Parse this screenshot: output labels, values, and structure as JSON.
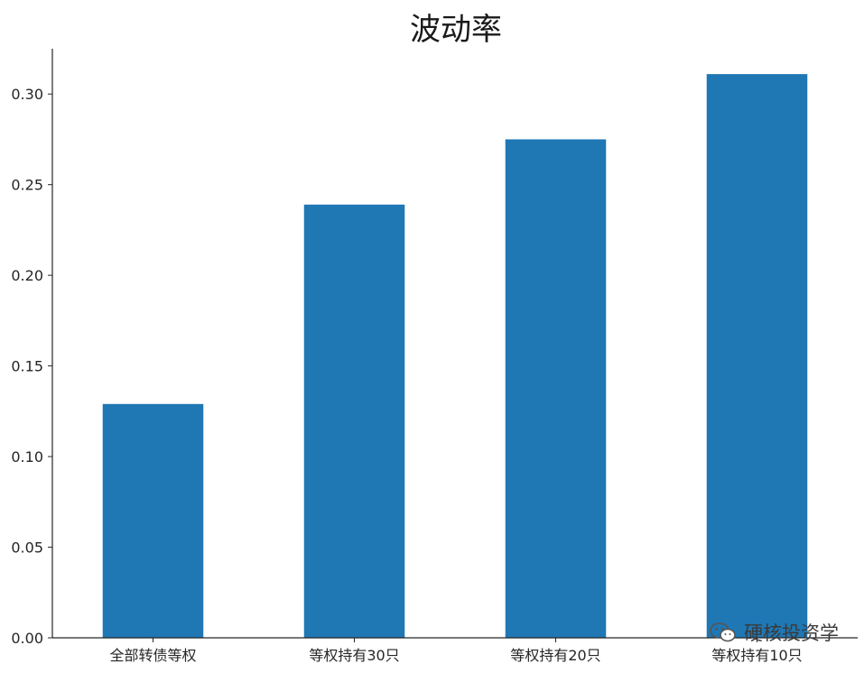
{
  "chart_data": {
    "type": "bar",
    "title": "波动率",
    "categories": [
      "全部转债等权",
      "等权持有30只",
      "等权持有20只",
      "等权持有10只"
    ],
    "values": [
      0.129,
      0.239,
      0.275,
      0.311
    ],
    "ylim": [
      0,
      0.325
    ],
    "yticks": [
      "0.00",
      "0.05",
      "0.10",
      "0.15",
      "0.20",
      "0.25",
      "0.30"
    ],
    "xlabel": "",
    "ylabel": "",
    "bar_color": "#1f77b4",
    "grid": false,
    "legend": "none"
  },
  "watermark": {
    "icon": "wechat-icon",
    "text": "硬核投资学"
  }
}
